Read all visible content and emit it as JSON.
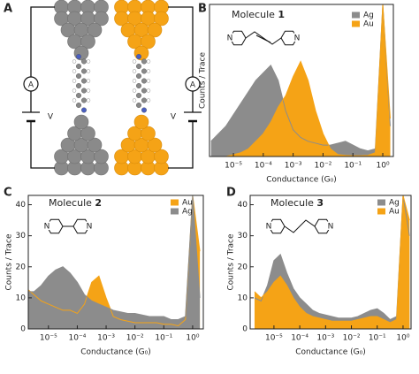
{
  "diagram": {
    "panel_label": "A",
    "ammeter_labels": [
      "A",
      "A"
    ],
    "voltage_labels": [
      "V",
      "V"
    ]
  },
  "chart_data": [
    {
      "type": "area",
      "panel_label": "B",
      "title": "Molecule ",
      "title_number": "1",
      "structure_atoms": [
        "N",
        "N"
      ],
      "xlabel": "Conductance (G₀)",
      "ylabel": "Counts / Trace",
      "log_x": true,
      "xlim": [
        1.585e-06,
        2.26
      ],
      "ylim": [
        0,
        40
      ],
      "xticks": [
        {
          "value": 1e-05,
          "label": "10⁻⁵"
        },
        {
          "value": 0.0001,
          "label": "10⁻⁴"
        },
        {
          "value": 0.001,
          "label": "10⁻³"
        },
        {
          "value": 0.01,
          "label": "10⁻²"
        },
        {
          "value": 0.1,
          "label": "10⁻¹"
        },
        {
          "value": 1,
          "label": "10⁰"
        }
      ],
      "x": [
        1.778e-06,
        3.162e-06,
        5.623e-06,
        1e-05,
        1.778e-05,
        3.162e-05,
        5.623e-05,
        0.0001,
        0.0001778,
        0.0003162,
        0.0005623,
        0.001,
        0.001778,
        0.003162,
        0.005623,
        0.01,
        0.01778,
        0.03162,
        0.05623,
        0.1,
        0.1778,
        0.3162,
        0.5623,
        1,
        1.778
      ],
      "series": [
        {
          "name": "Ag",
          "color": "#8c8c8c",
          "values": [
            4,
            6,
            8,
            11,
            14,
            17,
            20,
            22,
            24,
            20,
            12,
            7,
            5,
            4,
            3.5,
            3,
            3,
            3.5,
            4,
            3,
            2,
            1.5,
            2,
            40,
            8
          ]
        },
        {
          "name": "Au",
          "color": "#f5a316",
          "values": [
            0,
            0,
            0,
            0.5,
            1,
            2,
            4,
            6,
            9,
            13,
            16,
            21,
            25,
            20,
            12,
            6,
            2,
            0.5,
            0.3,
            0.2,
            0.2,
            0.3,
            1,
            40,
            10
          ]
        }
      ]
    },
    {
      "type": "area",
      "panel_label": "C",
      "title": "Molecule ",
      "title_number": "2",
      "structure_atoms": [
        "N",
        "N"
      ],
      "xlabel": "Conductance (G₀)",
      "ylabel": "Counts / Trace",
      "log_x": true,
      "xlim": [
        2e-06,
        2.344
      ],
      "ylim": [
        0,
        43
      ],
      "yticks": [
        0,
        10,
        20,
        30,
        40
      ],
      "xticks": [
        {
          "value": 1e-05,
          "label": "10⁻⁵"
        },
        {
          "value": 0.0001,
          "label": "10⁻⁴"
        },
        {
          "value": 0.001,
          "label": "10⁻³"
        },
        {
          "value": 0.01,
          "label": "10⁻²"
        },
        {
          "value": 0.1,
          "label": "10⁻¹"
        },
        {
          "value": 1,
          "label": "10⁰"
        }
      ],
      "x": [
        1.778e-06,
        3.162e-06,
        5.623e-06,
        1e-05,
        1.778e-05,
        3.162e-05,
        5.623e-05,
        0.0001,
        0.0001778,
        0.0003162,
        0.0005623,
        0.001,
        0.001778,
        0.003162,
        0.005623,
        0.01,
        0.01778,
        0.03162,
        0.05623,
        0.1,
        0.1778,
        0.3162,
        0.5623,
        1,
        1.778
      ],
      "series": [
        {
          "name": "Au",
          "color": "#f5a316",
          "values": [
            13,
            11,
            9,
            8,
            7,
            6,
            6,
            5,
            8,
            15,
            17,
            10,
            4,
            3,
            2.5,
            2,
            2,
            2,
            2,
            1.5,
            1.5,
            1,
            3,
            43,
            25
          ]
        },
        {
          "name": "Ag",
          "color": "#8c8c8c",
          "values": [
            12,
            12,
            14,
            17,
            19,
            20,
            18,
            15,
            11,
            9,
            8,
            7,
            6,
            5.5,
            5,
            5,
            4.5,
            4,
            4,
            4,
            3,
            3,
            4,
            43,
            10
          ]
        }
      ]
    },
    {
      "type": "area",
      "panel_label": "D",
      "title": "Molecule ",
      "title_number": "3",
      "structure_atoms": [
        "N",
        "N"
      ],
      "xlabel": "Conductance (G₀)",
      "ylabel": "Counts / Trace",
      "log_x": true,
      "xlim": [
        1.2e-06,
        2.04
      ],
      "ylim": [
        0,
        43
      ],
      "yticks": [
        0,
        10,
        20,
        30,
        40
      ],
      "xticks": [
        {
          "value": 1e-05,
          "label": "10⁻⁵"
        },
        {
          "value": 0.0001,
          "label": "10⁻⁴"
        },
        {
          "value": 0.001,
          "label": "10⁻³"
        },
        {
          "value": 0.01,
          "label": "10⁻²"
        },
        {
          "value": 0.1,
          "label": "10⁻¹"
        },
        {
          "value": 1,
          "label": "10⁰"
        }
      ],
      "x": [
        1.778e-06,
        3.162e-06,
        5.623e-06,
        1e-05,
        1.778e-05,
        3.162e-05,
        5.623e-05,
        0.0001,
        0.0001778,
        0.0003162,
        0.0005623,
        0.001,
        0.001778,
        0.003162,
        0.005623,
        0.01,
        0.01778,
        0.03162,
        0.05623,
        0.1,
        0.1778,
        0.3162,
        0.5623,
        1,
        1.778
      ],
      "series": [
        {
          "name": "Ag",
          "color": "#8c8c8c",
          "values": [
            10,
            9,
            14,
            22,
            24,
            18,
            13,
            10,
            8,
            6,
            5,
            4.5,
            4,
            3.5,
            3.5,
            3.5,
            4,
            5,
            6,
            6.5,
            5,
            3,
            4,
            43,
            30
          ]
        },
        {
          "name": "Au",
          "color": "#f5a316",
          "values": [
            12,
            10,
            12,
            15,
            17,
            14,
            10,
            7,
            5,
            4,
            3.5,
            3,
            2.5,
            2.5,
            2.5,
            2.5,
            3,
            3.5,
            4,
            4,
            3,
            2,
            3,
            43,
            35
          ]
        }
      ]
    }
  ]
}
